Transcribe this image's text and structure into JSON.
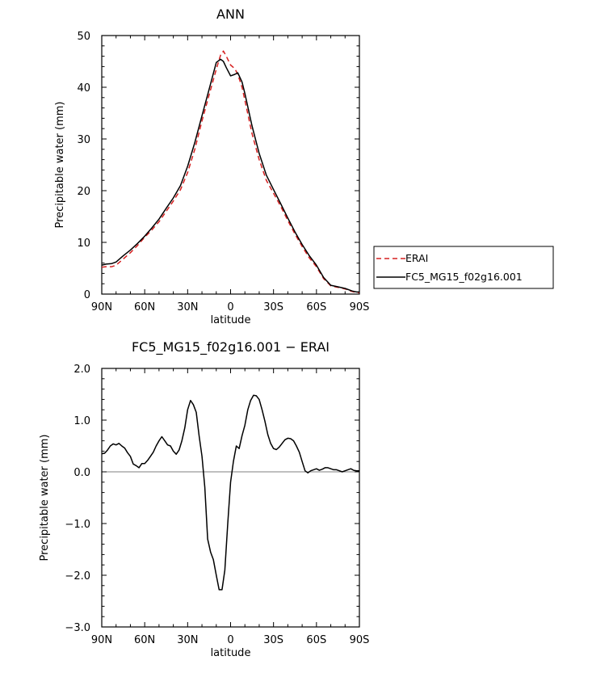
{
  "chart_data": [
    {
      "type": "line",
      "title": "ANN",
      "xlabel": "latitude",
      "ylabel": "Precipitable water (mm)",
      "xlim": [
        90,
        -90
      ],
      "ylim": [
        0,
        50
      ],
      "x_ticks": [
        90,
        60,
        30,
        0,
        -30,
        -60,
        -90
      ],
      "x_tick_labels": [
        "90N",
        "60N",
        "30N",
        "0",
        "30S",
        "60S",
        "90S"
      ],
      "y_ticks": [
        0,
        10,
        20,
        30,
        40,
        50
      ],
      "y_tick_labels": [
        "0",
        "10",
        "20",
        "30",
        "40",
        "50"
      ],
      "grid": false,
      "legend_position": "right",
      "series": [
        {
          "name": "ERAI",
          "color": "#d62020",
          "dash": "dashed",
          "x": [
            90,
            87,
            83,
            80,
            75,
            70,
            65,
            60,
            55,
            50,
            45,
            40,
            35,
            30,
            25,
            20,
            15,
            10,
            7,
            5,
            3,
            0,
            -3,
            -5,
            -8,
            -10,
            -15,
            -20,
            -25,
            -30,
            -35,
            -40,
            -45,
            -50,
            -55,
            -60,
            -65,
            -70,
            -75,
            -80,
            -85,
            -88,
            -90
          ],
          "values": [
            5.2,
            5.3,
            5.3,
            5.6,
            6.8,
            8.0,
            9.4,
            11.0,
            12.4,
            14.0,
            16.0,
            18.0,
            20.2,
            23.5,
            28.0,
            33.5,
            38.5,
            43.5,
            46.2,
            47.0,
            46.0,
            44.3,
            43.6,
            42.5,
            40.0,
            37.5,
            31.0,
            26.0,
            22.0,
            19.5,
            17.0,
            14.2,
            11.6,
            9.2,
            7.0,
            5.3,
            3.0,
            1.6,
            1.3,
            1.0,
            0.5,
            0.3,
            0.3
          ]
        },
        {
          "name": "FC5_MG15_f02g16.001",
          "color": "#000000",
          "dash": "solid",
          "x": [
            90,
            87,
            83,
            80,
            75,
            70,
            65,
            60,
            55,
            50,
            45,
            40,
            35,
            30,
            25,
            20,
            15,
            10,
            7,
            5,
            3,
            0,
            -3,
            -5,
            -8,
            -10,
            -15,
            -20,
            -25,
            -30,
            -35,
            -40,
            -45,
            -50,
            -55,
            -60,
            -65,
            -70,
            -75,
            -80,
            -85,
            -88,
            -90
          ],
          "values": [
            5.6,
            5.8,
            5.9,
            6.2,
            7.4,
            8.5,
            9.8,
            11.2,
            12.8,
            14.5,
            16.6,
            18.6,
            21.0,
            24.7,
            29.3,
            34.5,
            39.6,
            44.8,
            45.4,
            45.0,
            43.8,
            42.2,
            42.5,
            42.8,
            41.0,
            38.8,
            32.5,
            27.2,
            23.0,
            20.2,
            17.5,
            14.7,
            12.0,
            9.6,
            7.4,
            5.6,
            3.2,
            1.7,
            1.4,
            1.1,
            0.6,
            0.4,
            0.4
          ]
        }
      ]
    },
    {
      "type": "line",
      "title": "FC5_MG15_f02g16.001 − ERAI",
      "xlabel": "latitude",
      "ylabel": "Precipitable water (mm)",
      "xlim": [
        90,
        -90
      ],
      "ylim": [
        -3.0,
        2.0
      ],
      "x_ticks": [
        90,
        60,
        30,
        0,
        -30,
        -60,
        -90
      ],
      "x_tick_labels": [
        "90N",
        "60N",
        "30N",
        "0",
        "30S",
        "60S",
        "90S"
      ],
      "y_ticks": [
        -3.0,
        -2.0,
        -1.0,
        0.0,
        1.0,
        2.0
      ],
      "y_tick_labels": [
        "−3.0",
        "−2.0",
        "−1.0",
        "0.0",
        "1.0",
        "2.0"
      ],
      "grid": false,
      "series": [
        {
          "color": "#000000",
          "dash": "solid",
          "x": [
            90,
            88,
            86,
            84,
            82,
            80,
            78,
            76,
            74,
            72,
            70,
            68,
            66,
            64,
            62,
            60,
            58,
            56,
            54,
            52,
            50,
            48,
            46,
            44,
            42,
            40,
            38,
            36,
            34,
            32,
            30,
            28,
            26,
            24,
            22,
            20,
            18,
            16,
            14,
            12,
            10,
            8,
            6,
            4,
            2,
            0,
            -2,
            -4,
            -6,
            -8,
            -10,
            -12,
            -14,
            -16,
            -18,
            -20,
            -22,
            -24,
            -26,
            -28,
            -30,
            -32,
            -34,
            -36,
            -38,
            -40,
            -42,
            -44,
            -46,
            -48,
            -50,
            -52,
            -54,
            -56,
            -58,
            -60,
            -62,
            -64,
            -66,
            -68,
            -70,
            -72,
            -74,
            -76,
            -78,
            -80,
            -82,
            -84,
            -86,
            -88,
            -90
          ],
          "values": [
            0.35,
            0.36,
            0.42,
            0.5,
            0.54,
            0.52,
            0.55,
            0.5,
            0.46,
            0.37,
            0.3,
            0.15,
            0.12,
            0.08,
            0.16,
            0.16,
            0.22,
            0.3,
            0.38,
            0.5,
            0.6,
            0.68,
            0.6,
            0.52,
            0.5,
            0.4,
            0.34,
            0.42,
            0.6,
            0.85,
            1.2,
            1.38,
            1.3,
            1.15,
            0.7,
            0.3,
            -0.3,
            -1.3,
            -1.55,
            -1.7,
            -2.0,
            -2.28,
            -2.28,
            -1.9,
            -1.0,
            -0.2,
            0.2,
            0.5,
            0.45,
            0.7,
            0.9,
            1.2,
            1.38,
            1.48,
            1.47,
            1.4,
            1.2,
            0.98,
            0.72,
            0.55,
            0.45,
            0.43,
            0.48,
            0.55,
            0.62,
            0.65,
            0.64,
            0.6,
            0.5,
            0.38,
            0.2,
            0.02,
            -0.02,
            0.02,
            0.04,
            0.06,
            0.03,
            0.05,
            0.08,
            0.08,
            0.06,
            0.04,
            0.04,
            0.02,
            0.0,
            0.02,
            0.04,
            0.06,
            0.03,
            0.02,
            0.02
          ]
        }
      ]
    }
  ]
}
